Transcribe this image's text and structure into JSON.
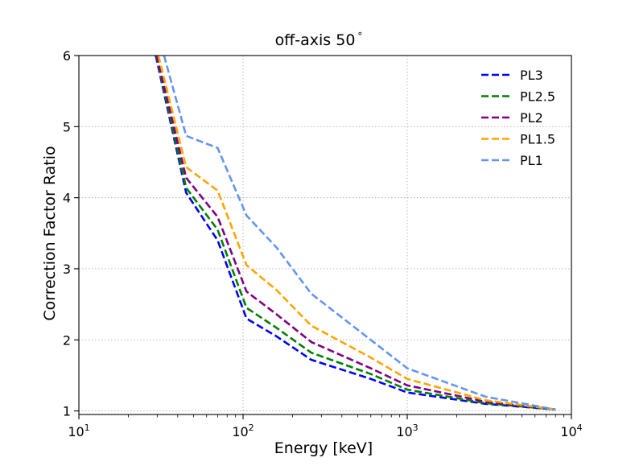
{
  "chart_data": {
    "type": "line",
    "title": "off-axis 50",
    "title_suffix": "°",
    "xlabel": "Energy [keV]",
    "ylabel": "Correction Factor Ratio",
    "xscale": "log",
    "xlim": [
      10,
      10000
    ],
    "ylim": [
      0.95,
      6
    ],
    "x_ticks": [
      {
        "value": 10,
        "base": "10",
        "exp": "1"
      },
      {
        "value": 100,
        "base": "10",
        "exp": "2"
      },
      {
        "value": 1000,
        "base": "10",
        "exp": "3"
      },
      {
        "value": 10000,
        "base": "10",
        "exp": "4"
      }
    ],
    "y_ticks": [
      {
        "value": 1,
        "label": "1"
      },
      {
        "value": 2,
        "label": "2"
      },
      {
        "value": 3,
        "label": "3"
      },
      {
        "value": 4,
        "label": "4"
      },
      {
        "value": 5,
        "label": "5"
      },
      {
        "value": 6,
        "label": "6"
      }
    ],
    "grid": true,
    "legend_position": "top-right",
    "series": [
      {
        "name": "PL3",
        "color": "#0000ff",
        "x": [
          29.4,
          45,
          70,
          105,
          160,
          260,
          600,
          1000,
          3000,
          8000
        ],
        "y": [
          6.0,
          4.07,
          3.4,
          2.3,
          2.05,
          1.72,
          1.45,
          1.26,
          1.1,
          1.02
        ]
      },
      {
        "name": "PL2.5",
        "color": "#008000",
        "x": [
          29.6,
          45,
          70,
          105,
          160,
          260,
          600,
          1000,
          3000,
          8000
        ],
        "y": [
          6.0,
          4.14,
          3.55,
          2.45,
          2.17,
          1.82,
          1.52,
          1.3,
          1.11,
          1.02
        ]
      },
      {
        "name": "PL2",
        "color": "#800080",
        "x": [
          29.8,
          45,
          70,
          105,
          160,
          260,
          600,
          1000,
          3000,
          8000
        ],
        "y": [
          6.0,
          4.28,
          3.73,
          2.68,
          2.36,
          1.97,
          1.6,
          1.36,
          1.13,
          1.02
        ]
      },
      {
        "name": "PL1.5",
        "color": "#ffa500",
        "x": [
          30.5,
          45,
          70,
          105,
          160,
          260,
          600,
          1000,
          3000,
          8000
        ],
        "y": [
          6.0,
          4.43,
          4.1,
          3.05,
          2.7,
          2.2,
          1.75,
          1.45,
          1.15,
          1.02
        ]
      },
      {
        "name": "PL1",
        "color": "#6495ed",
        "x": [
          33,
          45,
          70,
          105,
          160,
          260,
          600,
          1000,
          3000,
          8000
        ],
        "y": [
          6.0,
          4.87,
          4.7,
          3.75,
          3.3,
          2.65,
          2.0,
          1.6,
          1.2,
          1.02
        ]
      }
    ]
  }
}
